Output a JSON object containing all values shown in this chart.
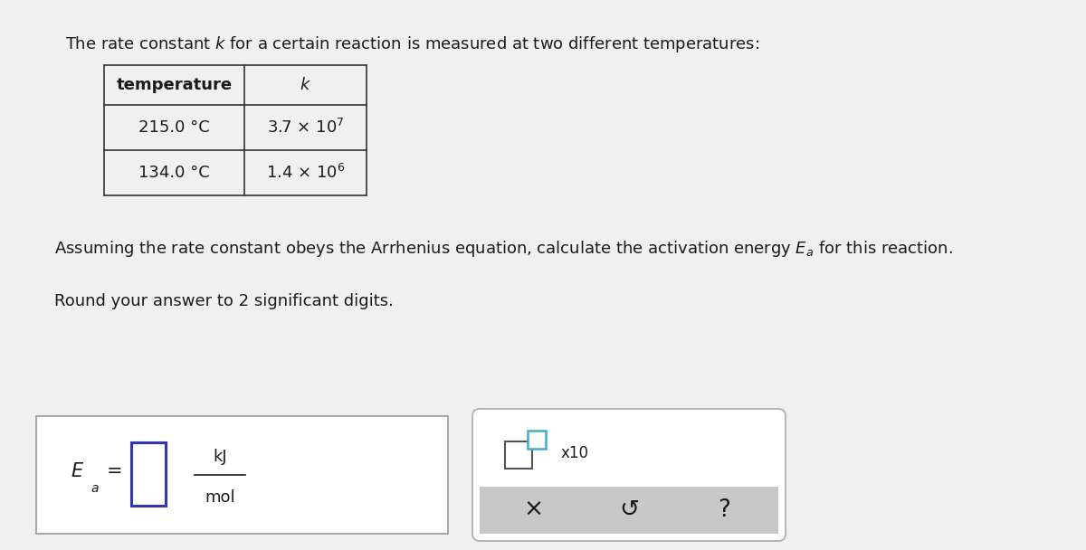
{
  "bg_color": "#f0f0f0",
  "text_color": "#1a1a1a",
  "title_text": "The rate constant $k$ for a certain reaction is measured at two different temperatures:",
  "arrhenius_text": "Assuming the rate constant obeys the Arrhenius equation, calculate the activation energy $E_a$ for this reaction.",
  "round_text": "Round your answer to 2 significant digits.",
  "input_box_color": "#3333bb",
  "checkbox_color": "#44aacc",
  "gray_band_color": "#c8c8c8",
  "table_border_color": "#333333",
  "outer_box_color": "#aaaaaa",
  "fig_w": 12.0,
  "fig_h": 6.08,
  "dpi": 100
}
